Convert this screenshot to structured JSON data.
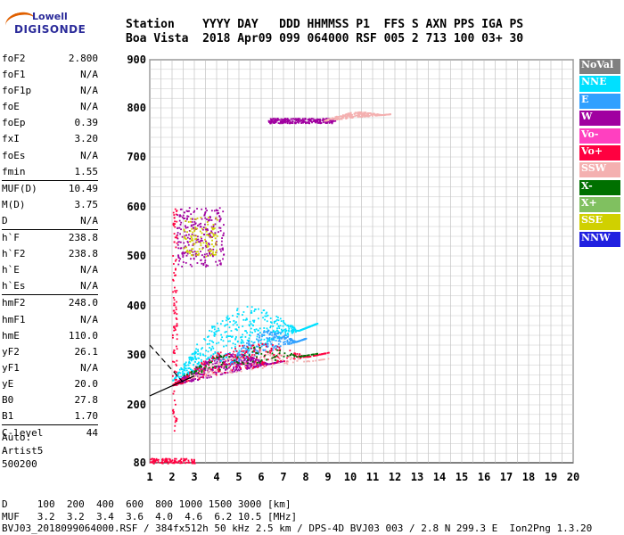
{
  "logo": {
    "line1": "Lowell",
    "line2": "DIGISONDE"
  },
  "header": {
    "row1": "Station    YYYY DAY   DDD HHMMSS P1  FFS S AXN PPS IGA PS",
    "row2": "Boa Vista  2018 Apr09 099 064000 RSF 005 2 713 100 03+ 30"
  },
  "params": [
    [
      {
        "label": "foF2",
        "value": "2.800"
      },
      {
        "label": "foF1",
        "value": "N/A"
      },
      {
        "label": "foF1p",
        "value": "N/A"
      },
      {
        "label": "foE",
        "value": "N/A"
      },
      {
        "label": "foEp",
        "value": "0.39"
      },
      {
        "label": "fxI",
        "value": "3.20"
      },
      {
        "label": "foEs",
        "value": "N/A"
      },
      {
        "label": "fmin",
        "value": "1.55"
      }
    ],
    [
      {
        "label": "MUF(D)",
        "value": "10.49"
      },
      {
        "label": "M(D)",
        "value": "3.75"
      },
      {
        "label": "D",
        "value": "N/A"
      }
    ],
    [
      {
        "label": "h`F",
        "value": "238.8"
      },
      {
        "label": "h`F2",
        "value": "238.8"
      },
      {
        "label": "h`E",
        "value": "N/A"
      },
      {
        "label": "h`Es",
        "value": "N/A"
      }
    ],
    [
      {
        "label": "hmF2",
        "value": "248.0"
      },
      {
        "label": "hmF1",
        "value": "N/A"
      },
      {
        "label": "hmE",
        "value": "110.0"
      },
      {
        "label": "yF2",
        "value": "26.1"
      },
      {
        "label": "yF1",
        "value": "N/A"
      },
      {
        "label": "yE",
        "value": "20.0"
      },
      {
        "label": "B0",
        "value": "27.8"
      },
      {
        "label": "B1",
        "value": "1.70"
      }
    ],
    [
      {
        "label": "C-level",
        "value": "44"
      }
    ]
  ],
  "auto": {
    "line1": "Auto:",
    "line2": "Artist5",
    "line3": "500200"
  },
  "legend": [
    {
      "label": "NoVal",
      "color": "#808080"
    },
    {
      "label": "NNE",
      "color": "#00e0ff"
    },
    {
      "label": "E",
      "color": "#30a0ff"
    },
    {
      "label": "W",
      "color": "#a000a0"
    },
    {
      "label": "Vo-",
      "color": "#ff40c0"
    },
    {
      "label": "Vo+",
      "color": "#ff0040"
    },
    {
      "label": "SSW",
      "color": "#f4b0b0"
    },
    {
      "label": "X-",
      "color": "#007000"
    },
    {
      "label": "X+",
      "color": "#80c060"
    },
    {
      "label": "SSE",
      "color": "#d0d000"
    },
    {
      "label": "NNW",
      "color": "#2020e0"
    }
  ],
  "footer": {
    "line1": "D     100  200  400  600  800 1000 1500 3000 [km]",
    "line2": "MUF   3.2  3.2  3.4  3.6  4.0  4.6  6.2 10.5 [MHz]",
    "line3": "BVJ03_2018099064000.RSF / 384fx512h 50 kHz 2.5 km / DPS-4D BVJ03 003 / 2.8 N 299.3 E  Ion2Png 1.3.20"
  },
  "chart_data": {
    "type": "scatter",
    "xlabel": "",
    "ylabel": "",
    "xlim": [
      1,
      20
    ],
    "ylim": [
      80,
      900
    ],
    "grid": true,
    "x_ticks": [
      1,
      2,
      3,
      4,
      5,
      6,
      7,
      8,
      9,
      10,
      11,
      12,
      13,
      14,
      15,
      16,
      17,
      18,
      19,
      20
    ],
    "y_ticks": [
      80,
      200,
      300,
      400,
      500,
      600,
      700,
      800,
      900
    ],
    "clusters": [
      {
        "series": "W",
        "x": [
          2.0,
          7.0
        ],
        "y": [
          240,
          330
        ],
        "density": "high",
        "trend": "rising"
      },
      {
        "series": "NNE",
        "x": [
          2.0,
          8.5
        ],
        "y": [
          250,
          460
        ],
        "density": "high",
        "trend": "rising"
      },
      {
        "series": "E",
        "x": [
          4.5,
          8.0
        ],
        "y": [
          280,
          380
        ],
        "density": "medium",
        "trend": "rising"
      },
      {
        "series": "Vo+",
        "x": [
          2.0,
          9.0
        ],
        "y": [
          240,
          360
        ],
        "density": "medium",
        "trend": "rising"
      },
      {
        "series": "SSW",
        "x": [
          2.5,
          9.0
        ],
        "y": [
          250,
          330
        ],
        "density": "low",
        "trend": "rising"
      },
      {
        "series": "X-",
        "x": [
          2.5,
          8.5
        ],
        "y": [
          260,
          340
        ],
        "density": "low",
        "trend": "rising"
      },
      {
        "series": "W",
        "x": [
          2.2,
          4.3
        ],
        "y": [
          480,
          600
        ],
        "density": "medium",
        "trend": "flat"
      },
      {
        "series": "SSE",
        "x": [
          2.5,
          4.0
        ],
        "y": [
          500,
          580
        ],
        "density": "low",
        "trend": "flat"
      },
      {
        "series": "W",
        "x": [
          6.3,
          9.3
        ],
        "y": [
          770,
          780
        ],
        "density": "medium",
        "trend": "flat"
      },
      {
        "series": "SSW",
        "x": [
          8.8,
          11.8
        ],
        "y": [
          775,
          800
        ],
        "density": "medium",
        "trend": "rising"
      },
      {
        "series": "Vo+",
        "x": [
          1.0,
          3.0
        ],
        "y": [
          80,
          90
        ],
        "density": "low",
        "trend": "flat"
      },
      {
        "series": "Vo+",
        "x": [
          2.0,
          2.2
        ],
        "y": [
          140,
          600
        ],
        "density": "low",
        "trend": "vertical"
      }
    ],
    "fit_lines": [
      {
        "x": [
          1.0,
          2.6
        ],
        "y": [
          320,
          240
        ],
        "style": "dashed"
      },
      {
        "x": [
          1.0,
          3.0
        ],
        "y": [
          218,
          258
        ],
        "style": "solid"
      }
    ]
  }
}
